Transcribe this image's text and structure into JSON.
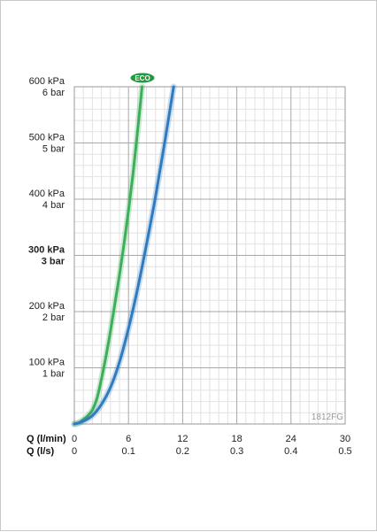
{
  "chart_data": {
    "type": "line",
    "y_ticks": [
      {
        "value": 100,
        "kpa": "100 kPa",
        "bar": "1 bar",
        "bold": false
      },
      {
        "value": 200,
        "kpa": "200 kPa",
        "bar": "2 bar",
        "bold": false
      },
      {
        "value": 300,
        "kpa": "300 kPa",
        "bar": "3 bar",
        "bold": true
      },
      {
        "value": 400,
        "kpa": "400 kPa",
        "bar": "4 bar",
        "bold": false
      },
      {
        "value": 500,
        "kpa": "500 kPa",
        "bar": "5 bar",
        "bold": false
      },
      {
        "value": 600,
        "kpa": "600 kPa",
        "bar": "6 bar",
        "bold": false
      }
    ],
    "x_ticks_lmin": [
      "0",
      "6",
      "12",
      "18",
      "24",
      "30"
    ],
    "x_ticks_ls": [
      "0",
      "0.1",
      "0.2",
      "0.3",
      "0.4",
      "0.5"
    ],
    "x_label_lmin": "Q (l/min)",
    "x_label_ls": "Q (l/s)",
    "xlim": [
      0,
      30
    ],
    "ylim": [
      0,
      600
    ],
    "grid": true,
    "model_code": "1812FG",
    "series": [
      {
        "name": "ECO",
        "color": "#3dae5a",
        "x": [
          0,
          0.5,
          1,
          1.5,
          2,
          2.5,
          3,
          3.5,
          4,
          4.5,
          5,
          5.5,
          6,
          6.5,
          7,
          7.5
        ],
        "y": [
          0,
          2,
          8,
          15,
          25,
          45,
          80,
          120,
          165,
          215,
          265,
          320,
          380,
          445,
          520,
          600
        ]
      },
      {
        "color": "#2f7bbf",
        "x": [
          0,
          1,
          2,
          3,
          4,
          5,
          6,
          7,
          8,
          9,
          10,
          11
        ],
        "y": [
          0,
          5,
          15,
          35,
          65,
          110,
          170,
          240,
          320,
          405,
          500,
          600
        ]
      }
    ]
  }
}
